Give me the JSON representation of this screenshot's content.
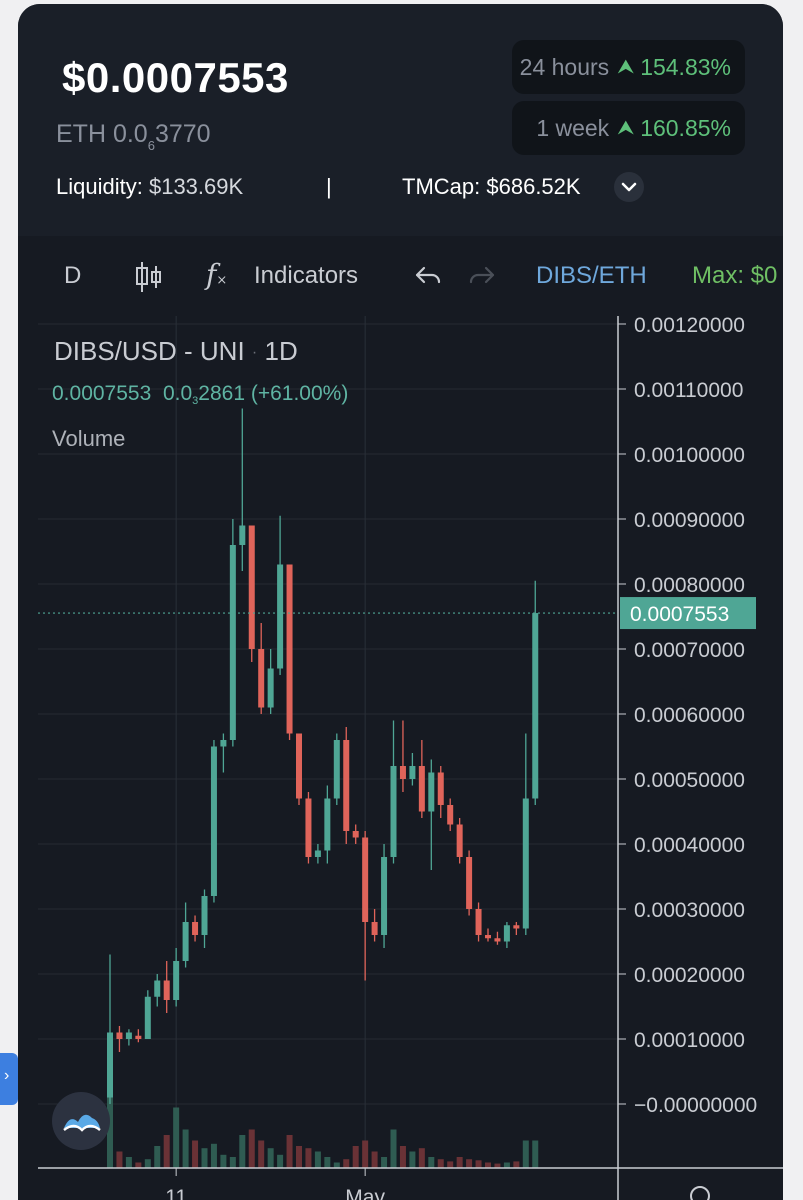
{
  "header": {
    "price": "$0.0007553",
    "eth_prefix": "ETH 0.0",
    "eth_sub": "6",
    "eth_suffix": "3770",
    "liquidity_label": "Liquidity:",
    "liquidity_value": "$133.69K",
    "separator": "|",
    "tmcap_label": "TMCap:",
    "tmcap_value": "$686.52K",
    "changes": [
      {
        "period": "24 hours",
        "pct": "154.83%"
      },
      {
        "period": "1 week",
        "pct": "160.85%"
      }
    ]
  },
  "toolbar": {
    "interval": "D",
    "indicators_label": "Indicators",
    "fx_label": "f",
    "pair": "DIBS/ETH",
    "max_label": "Max: $0"
  },
  "overlay": {
    "title": "DIBS/USD · UNI · 1D",
    "title_parts": [
      "DIBS/USD - UNI",
      "·",
      "1D"
    ],
    "value": "0.0007553",
    "change_prefix": "0.0",
    "change_sub": "3",
    "change_suffix": "2861",
    "change_pct": "(+61.00%)",
    "volume_label": "Volume"
  },
  "colors": {
    "up": "#4fa695",
    "down": "#e0645a",
    "bg": "#161a22",
    "price_tag": "#4fa695",
    "accent_green": "#5ec07a"
  },
  "chart_data": {
    "type": "candlestick",
    "symbol": "DIBS/USD",
    "exchange": "UNI",
    "interval": "1D",
    "ylim": [
      0.0,
      0.0012
    ],
    "y_ticks": [
      "0.00120000",
      "0.00110000",
      "0.00100000",
      "0.00090000",
      "0.00080000",
      "0.00070000",
      "0.00060000",
      "0.00050000",
      "0.00040000",
      "0.00030000",
      "0.00020000",
      "0.00010000",
      "−0.00000000"
    ],
    "x_ticks": [
      "11",
      "May"
    ],
    "last_price_tag": "0.0007553",
    "last_price": 0.0007553,
    "candles": [
      {
        "o": 1e-05,
        "h": 0.00023,
        "l": 0.0,
        "c": 0.00011
      },
      {
        "o": 0.00011,
        "h": 0.00012,
        "l": 8e-05,
        "c": 0.0001
      },
      {
        "o": 0.0001,
        "h": 0.000115,
        "l": 9e-05,
        "c": 0.00011
      },
      {
        "o": 0.000105,
        "h": 0.000115,
        "l": 9.5e-05,
        "c": 0.0001
      },
      {
        "o": 0.0001,
        "h": 0.000175,
        "l": 0.0001,
        "c": 0.000165
      },
      {
        "o": 0.000165,
        "h": 0.0002,
        "l": 0.00015,
        "c": 0.00019
      },
      {
        "o": 0.00019,
        "h": 0.00022,
        "l": 0.00014,
        "c": 0.00016
      },
      {
        "o": 0.00016,
        "h": 0.00024,
        "l": 0.00015,
        "c": 0.00022
      },
      {
        "o": 0.00022,
        "h": 0.00031,
        "l": 0.00021,
        "c": 0.00028
      },
      {
        "o": 0.00028,
        "h": 0.00029,
        "l": 0.00025,
        "c": 0.00026
      },
      {
        "o": 0.00026,
        "h": 0.00033,
        "l": 0.00024,
        "c": 0.00032
      },
      {
        "o": 0.00032,
        "h": 0.00056,
        "l": 0.00031,
        "c": 0.00055
      },
      {
        "o": 0.00055,
        "h": 0.00057,
        "l": 0.00051,
        "c": 0.00056
      },
      {
        "o": 0.00056,
        "h": 0.0009,
        "l": 0.00055,
        "c": 0.00086
      },
      {
        "o": 0.00086,
        "h": 0.00107,
        "l": 0.00082,
        "c": 0.00089
      },
      {
        "o": 0.00089,
        "h": 0.00089,
        "l": 0.00068,
        "c": 0.0007
      },
      {
        "o": 0.0007,
        "h": 0.00074,
        "l": 0.0006,
        "c": 0.00061
      },
      {
        "o": 0.00061,
        "h": 0.0007,
        "l": 0.0006,
        "c": 0.00067
      },
      {
        "o": 0.00067,
        "h": 0.000905,
        "l": 0.00066,
        "c": 0.00083
      },
      {
        "o": 0.00083,
        "h": 0.00083,
        "l": 0.00056,
        "c": 0.00057
      },
      {
        "o": 0.00057,
        "h": 0.00057,
        "l": 0.00046,
        "c": 0.00047
      },
      {
        "o": 0.00047,
        "h": 0.00048,
        "l": 0.00037,
        "c": 0.00038
      },
      {
        "o": 0.00038,
        "h": 0.0004,
        "l": 0.00037,
        "c": 0.00039
      },
      {
        "o": 0.00039,
        "h": 0.00049,
        "l": 0.00037,
        "c": 0.00047
      },
      {
        "o": 0.00047,
        "h": 0.00057,
        "l": 0.00046,
        "c": 0.00056
      },
      {
        "o": 0.00056,
        "h": 0.00058,
        "l": 0.0004,
        "c": 0.00042
      },
      {
        "o": 0.00042,
        "h": 0.00043,
        "l": 0.0004,
        "c": 0.00041
      },
      {
        "o": 0.00041,
        "h": 0.00042,
        "l": 0.00019,
        "c": 0.00028
      },
      {
        "o": 0.00028,
        "h": 0.0003,
        "l": 0.00025,
        "c": 0.00026
      },
      {
        "o": 0.00026,
        "h": 0.0004,
        "l": 0.00024,
        "c": 0.00038
      },
      {
        "o": 0.00038,
        "h": 0.00059,
        "l": 0.00037,
        "c": 0.00052
      },
      {
        "o": 0.00052,
        "h": 0.00059,
        "l": 0.00048,
        "c": 0.0005
      },
      {
        "o": 0.0005,
        "h": 0.00054,
        "l": 0.00049,
        "c": 0.00052
      },
      {
        "o": 0.00052,
        "h": 0.00056,
        "l": 0.00044,
        "c": 0.00045
      },
      {
        "o": 0.00045,
        "h": 0.00053,
        "l": 0.00036,
        "c": 0.00051
      },
      {
        "o": 0.00051,
        "h": 0.00052,
        "l": 0.00044,
        "c": 0.00046
      },
      {
        "o": 0.00046,
        "h": 0.00047,
        "l": 0.00042,
        "c": 0.00043
      },
      {
        "o": 0.00043,
        "h": 0.00044,
        "l": 0.00037,
        "c": 0.00038
      },
      {
        "o": 0.00038,
        "h": 0.00039,
        "l": 0.00029,
        "c": 0.0003
      },
      {
        "o": 0.0003,
        "h": 0.00031,
        "l": 0.00025,
        "c": 0.00026
      },
      {
        "o": 0.00026,
        "h": 0.00027,
        "l": 0.00025,
        "c": 0.000255
      },
      {
        "o": 0.000255,
        "h": 0.000265,
        "l": 0.000245,
        "c": 0.00025
      },
      {
        "o": 0.00025,
        "h": 0.00028,
        "l": 0.00024,
        "c": 0.000275
      },
      {
        "o": 0.000275,
        "h": 0.00028,
        "l": 0.00026,
        "c": 0.00027
      },
      {
        "o": 0.00027,
        "h": 0.00057,
        "l": 0.00026,
        "c": 0.00047
      },
      {
        "o": 0.00047,
        "h": 0.000805,
        "l": 0.00046,
        "c": 0.0007553
      }
    ],
    "volume_relative": [
      0.9,
      0.15,
      0.1,
      0.05,
      0.08,
      0.2,
      0.3,
      0.55,
      0.35,
      0.25,
      0.18,
      0.22,
      0.12,
      0.1,
      0.3,
      0.35,
      0.25,
      0.18,
      0.12,
      0.3,
      0.2,
      0.18,
      0.15,
      0.1,
      0.05,
      0.08,
      0.2,
      0.25,
      0.15,
      0.1,
      0.35,
      0.2,
      0.15,
      0.18,
      0.1,
      0.08,
      0.06,
      0.1,
      0.08,
      0.07,
      0.05,
      0.04,
      0.05,
      0.06,
      0.25,
      0.25
    ]
  }
}
